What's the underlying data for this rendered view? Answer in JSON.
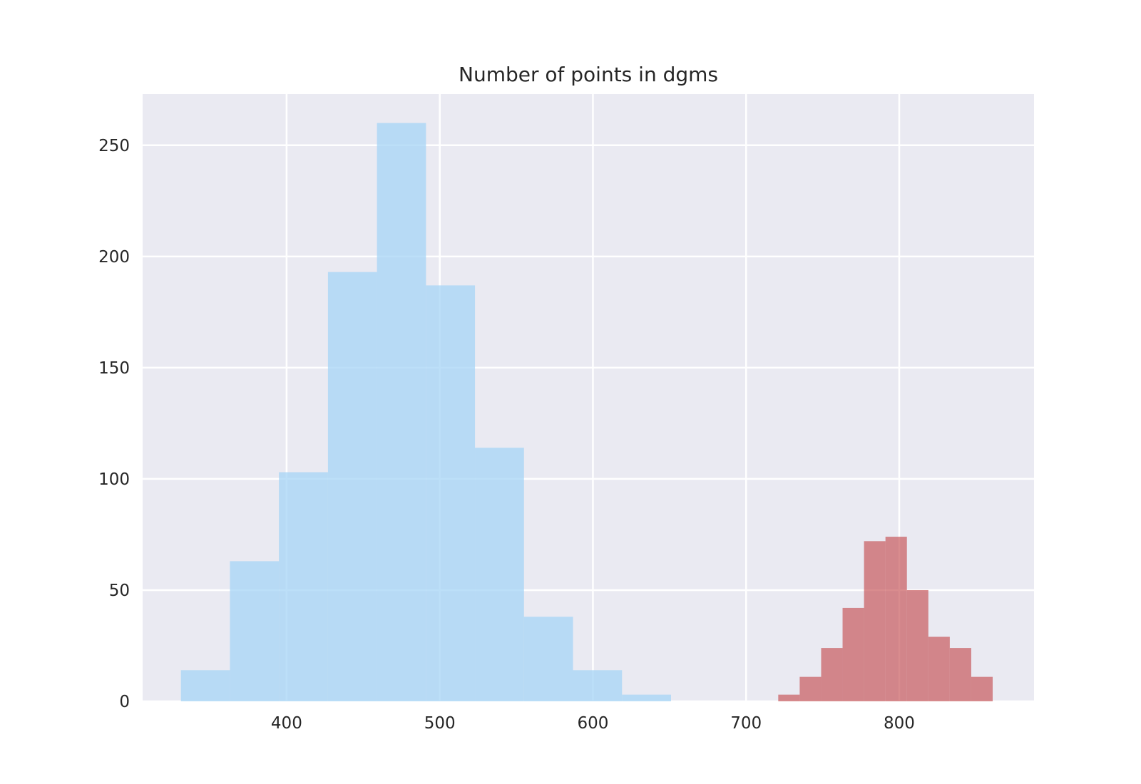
{
  "chart_data": {
    "type": "bar",
    "title": "Number of points in dgms",
    "xlabel": "",
    "ylabel": "",
    "xlim": [
      306,
      888
    ],
    "ylim": [
      0,
      273
    ],
    "x_ticks": [
      400,
      500,
      600,
      700,
      800
    ],
    "y_ticks": [
      0,
      50,
      100,
      150,
      200,
      250
    ],
    "grid": true,
    "background": "#eaeaf2",
    "grid_color": "#ffffff",
    "series": [
      {
        "color": "#a6d4f5",
        "opacity": 0.75,
        "bins": [
          {
            "x0": 331,
            "x1": 363,
            "value": 14
          },
          {
            "x0": 363,
            "x1": 395,
            "value": 63
          },
          {
            "x0": 395,
            "x1": 427,
            "value": 103
          },
          {
            "x0": 427,
            "x1": 459,
            "value": 193
          },
          {
            "x0": 459,
            "x1": 491,
            "value": 260
          },
          {
            "x0": 491,
            "x1": 523,
            "value": 187
          },
          {
            "x0": 523,
            "x1": 555,
            "value": 114
          },
          {
            "x0": 555,
            "x1": 587,
            "value": 38
          },
          {
            "x0": 587,
            "x1": 619,
            "value": 14
          },
          {
            "x0": 619,
            "x1": 651,
            "value": 3
          }
        ]
      },
      {
        "color": "#c44e52",
        "opacity": 0.65,
        "bins": [
          {
            "x0": 721,
            "x1": 735,
            "value": 3
          },
          {
            "x0": 735,
            "x1": 749,
            "value": 11
          },
          {
            "x0": 749,
            "x1": 763,
            "value": 24
          },
          {
            "x0": 763,
            "x1": 777,
            "value": 42
          },
          {
            "x0": 777,
            "x1": 791,
            "value": 72
          },
          {
            "x0": 791,
            "x1": 805,
            "value": 74
          },
          {
            "x0": 805,
            "x1": 819,
            "value": 50
          },
          {
            "x0": 819,
            "x1": 833,
            "value": 29
          },
          {
            "x0": 833,
            "x1": 847,
            "value": 24
          },
          {
            "x0": 847,
            "x1": 861,
            "value": 11
          }
        ]
      }
    ]
  }
}
